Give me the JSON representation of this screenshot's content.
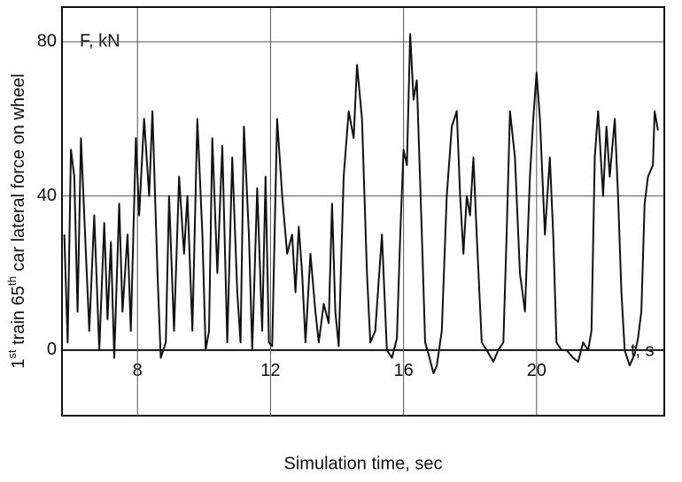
{
  "chart_data": {
    "type": "line",
    "ylabel": [
      "1",
      "st",
      " train 65",
      "th",
      " car lateral force on wheel"
    ],
    "xlabel": "Simulation time, sec",
    "annotations": [
      "F, kN",
      "t, s"
    ],
    "xlim": [
      5.73,
      23.84
    ],
    "ylim": [
      -17,
      89
    ],
    "xticks": [
      8,
      12,
      16,
      20
    ],
    "yticks": [
      0,
      40,
      80
    ],
    "grid": true,
    "x": [
      5.8,
      5.9,
      6.0,
      6.1,
      6.2,
      6.3,
      6.45,
      6.55,
      6.7,
      6.85,
      7.0,
      7.1,
      7.2,
      7.3,
      7.45,
      7.55,
      7.7,
      7.8,
      7.95,
      8.05,
      8.2,
      8.35,
      8.45,
      8.6,
      8.7,
      8.85,
      8.95,
      9.1,
      9.25,
      9.4,
      9.5,
      9.65,
      9.8,
      9.95,
      10.05,
      10.15,
      10.25,
      10.4,
      10.55,
      10.7,
      10.85,
      11.0,
      11.1,
      11.2,
      11.35,
      11.45,
      11.6,
      11.75,
      11.85,
      11.95,
      12.05,
      12.2,
      12.35,
      12.5,
      12.65,
      12.75,
      12.85,
      12.95,
      13.05,
      13.2,
      13.35,
      13.45,
      13.6,
      13.75,
      13.85,
      13.95,
      14.05,
      14.2,
      14.35,
      14.5,
      14.6,
      14.75,
      14.9,
      15.0,
      15.15,
      15.35,
      15.5,
      15.65,
      15.8,
      15.9,
      16.0,
      16.1,
      16.2,
      16.3,
      16.4,
      16.55,
      16.65,
      16.75,
      16.9,
      17.0,
      17.15,
      17.3,
      17.45,
      17.6,
      17.7,
      17.8,
      17.9,
      18.0,
      18.1,
      18.2,
      18.35,
      18.5,
      18.7,
      18.85,
      19.0,
      19.1,
      19.2,
      19.35,
      19.5,
      19.65,
      19.8,
      19.9,
      20.0,
      20.1,
      20.25,
      20.4,
      20.5,
      20.6,
      20.75,
      20.9,
      21.1,
      21.25,
      21.4,
      21.55,
      21.65,
      21.75,
      21.85,
      22.0,
      22.1,
      22.2,
      22.35,
      22.45,
      22.55,
      22.65,
      22.8,
      22.95,
      23.05,
      23.15,
      23.25,
      23.35,
      23.5,
      23.55,
      23.65
    ],
    "series": [
      {
        "color": "#111111",
        "values": [
          30,
          2,
          52,
          45,
          10,
          55,
          25,
          5,
          35,
          0,
          33,
          8,
          28,
          -2,
          38,
          10,
          30,
          5,
          55,
          35,
          60,
          40,
          62,
          20,
          -2,
          2,
          40,
          5,
          45,
          25,
          40,
          5,
          60,
          30,
          0,
          5,
          55,
          20,
          53,
          2,
          50,
          15,
          2,
          58,
          30,
          0,
          42,
          5,
          45,
          2,
          1,
          60,
          40,
          25,
          30,
          15,
          32,
          20,
          2,
          25,
          10,
          2,
          12,
          7,
          38,
          10,
          1,
          45,
          62,
          55,
          74,
          60,
          20,
          2,
          5,
          30,
          0,
          -2,
          3,
          30,
          52,
          48,
          82,
          65,
          70,
          30,
          2,
          -1,
          -6,
          -4,
          5,
          40,
          58,
          62,
          40,
          25,
          40,
          35,
          50,
          30,
          2,
          0,
          -3,
          0,
          2,
          30,
          62,
          50,
          20,
          10,
          45,
          60,
          72,
          60,
          30,
          50,
          30,
          2,
          0,
          0,
          -2,
          -3,
          2,
          0,
          5,
          50,
          62,
          40,
          58,
          45,
          60,
          40,
          15,
          0,
          -4,
          -1,
          3,
          10,
          38,
          45,
          48,
          62,
          57
        ]
      }
    ]
  }
}
